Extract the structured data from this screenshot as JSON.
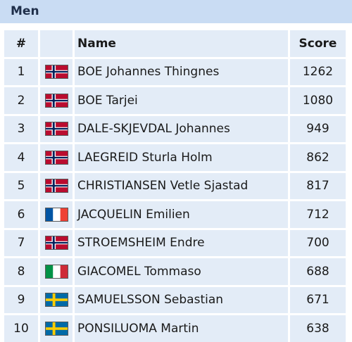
{
  "section": {
    "title": "Men"
  },
  "table": {
    "headers": {
      "rank": "#",
      "name": "Name",
      "score": "Score"
    },
    "rows": [
      {
        "rank": "1",
        "flag": "norway-flag-icon",
        "name": "BOE Johannes Thingnes",
        "score": "1262"
      },
      {
        "rank": "2",
        "flag": "norway-flag-icon",
        "name": "BOE Tarjei",
        "score": "1080"
      },
      {
        "rank": "3",
        "flag": "norway-flag-icon",
        "name": "DALE-SKJEVDAL Johannes",
        "score": "949"
      },
      {
        "rank": "4",
        "flag": "norway-flag-icon",
        "name": "LAEGREID Sturla Holm",
        "score": "862"
      },
      {
        "rank": "5",
        "flag": "norway-flag-icon",
        "name": "CHRISTIANSEN Vetle Sjastad",
        "score": "817"
      },
      {
        "rank": "6",
        "flag": "france-flag-icon",
        "name": "JACQUELIN Emilien",
        "score": "712"
      },
      {
        "rank": "7",
        "flag": "norway-flag-icon",
        "name": "STROEMSHEIM Endre",
        "score": "700"
      },
      {
        "rank": "8",
        "flag": "italy-flag-icon",
        "name": "GIACOMEL Tommaso",
        "score": "688"
      },
      {
        "rank": "9",
        "flag": "sweden-flag-icon",
        "name": "SAMUELSSON Sebastian",
        "score": "671"
      },
      {
        "rank": "10",
        "flag": "sweden-flag-icon",
        "name": "PONSILUOMA Martin",
        "score": "638"
      }
    ]
  },
  "colors": {
    "header_bg": "#c9dcf3",
    "cell_bg": "#e3ecf7"
  }
}
